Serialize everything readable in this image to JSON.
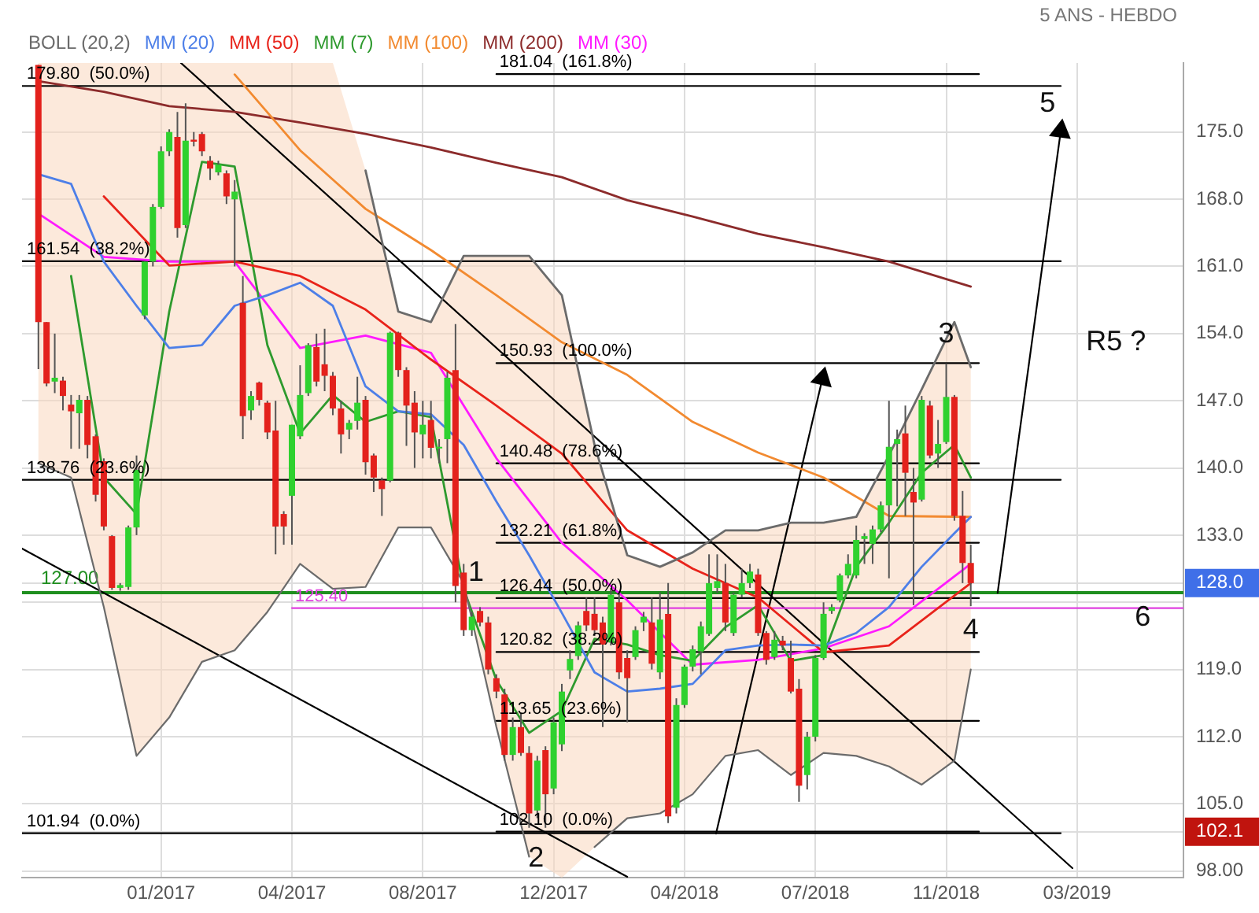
{
  "chart_data": {
    "type": "candlestick",
    "annotations": [
      "5 ANS - HEBDO",
      "1",
      {
        "text": "2",
        "x": "2017-11-19",
        "y": 99.3
      },
      {
        "text": "3",
        "x": "2018-11-05",
        "y": 153.9
      },
      {
        "text": "4",
        "x": "2018-11-26",
        "y": 123.1
      },
      "5",
      "6",
      "R5 ?"
    ],
    "x": [
      "2016-09-19",
      "2016-09-26",
      "2016-10-03",
      "2016-10-10",
      "2016-10-17",
      "2016-10-24",
      "2016-10-31",
      "2016-11-07",
      "2016-11-14",
      "2016-11-21",
      "2016-11-28",
      "2016-12-05",
      "2016-12-12",
      "2016-12-19",
      "2016-12-26",
      "2017-01-02",
      "2017-01-09",
      "2017-01-16",
      "2017-01-23",
      "2017-01-30",
      "2017-02-06",
      "2017-02-13",
      "2017-02-20",
      "2017-02-27",
      "2017-03-06",
      "2017-03-13",
      "2017-03-20",
      "2017-03-27",
      "2017-04-03",
      "2017-04-10",
      "2017-04-17",
      "2017-04-24",
      "2017-05-01",
      "2017-05-08",
      "2017-05-15",
      "2017-05-22",
      "2017-05-29",
      "2017-06-05",
      "2017-06-12",
      "2017-06-19",
      "2017-06-26",
      "2017-07-03",
      "2017-07-10",
      "2017-07-17",
      "2017-07-24",
      "2017-07-31",
      "2017-08-07",
      "2017-08-14",
      "2017-08-21",
      "2017-08-28",
      "2017-09-04",
      "2017-09-11",
      "2017-09-18",
      "2017-09-25",
      "2017-10-02",
      "2017-10-09",
      "2017-10-16",
      "2017-10-23",
      "2017-10-30",
      "2017-11-06",
      "2017-11-13",
      "2017-11-20",
      "2017-11-27",
      "2017-12-04",
      "2017-12-11",
      "2017-12-18",
      "2017-12-25",
      "2018-01-01",
      "2018-01-08",
      "2018-01-15",
      "2018-01-22",
      "2018-01-29",
      "2018-02-05",
      "2018-02-12",
      "2018-02-19",
      "2018-02-26",
      "2018-03-05",
      "2018-03-12",
      "2018-03-19",
      "2018-03-26",
      "2018-04-02",
      "2018-04-09",
      "2018-04-16",
      "2018-04-23",
      "2018-04-30",
      "2018-05-07",
      "2018-05-14",
      "2018-05-21",
      "2018-05-28",
      "2018-06-04",
      "2018-06-11",
      "2018-06-18",
      "2018-06-25",
      "2018-07-02",
      "2018-07-09",
      "2018-07-16",
      "2018-07-23",
      "2018-07-30",
      "2018-08-06",
      "2018-08-13",
      "2018-08-20",
      "2018-08-27",
      "2018-09-03",
      "2018-09-10",
      "2018-09-17",
      "2018-09-24",
      "2018-10-01",
      "2018-10-08",
      "2018-10-15",
      "2018-10-22",
      "2018-10-29",
      "2018-11-05",
      "2018-11-12",
      "2018-11-19",
      "2018-11-26"
    ],
    "ohlc": [
      [
        182,
        182,
        150.3,
        155.2
      ],
      [
        155.2,
        155.2,
        148.5,
        148.8
      ],
      [
        149,
        154,
        147.8,
        149.4
      ],
      [
        149.1,
        149.5,
        146,
        147.5
      ],
      [
        146.6,
        147.6,
        142,
        145.9
      ],
      [
        145.7,
        147.6,
        142,
        147.1
      ],
      [
        147.1,
        147.5,
        141,
        142.4
      ],
      [
        143.3,
        143.5,
        136.5,
        137.2
      ],
      [
        140.7,
        141,
        133.5,
        133.9
      ],
      [
        132.9,
        133,
        127.3,
        127.5
      ],
      [
        127.5,
        128,
        127.2,
        127.8
      ],
      [
        127.6,
        134,
        127.3,
        133.8
      ],
      [
        133.8,
        141.3,
        133,
        139.8
      ],
      [
        155.9,
        161.5,
        155.5,
        161.5
      ],
      [
        161.5,
        167.5,
        161,
        167.2
      ],
      [
        167.2,
        173.5,
        167,
        173
      ],
      [
        173,
        175.3,
        172.5,
        175
      ],
      [
        174.5,
        177.1,
        164,
        165
      ],
      [
        165.3,
        178,
        165,
        174.1
      ],
      [
        174.2,
        175,
        173.5,
        174
      ],
      [
        174.8,
        175,
        172.5,
        173
      ],
      [
        172,
        172.5,
        170,
        171.2
      ],
      [
        170.8,
        172,
        170.5,
        171.6
      ],
      [
        170.7,
        171,
        167.5,
        168.3
      ],
      [
        168,
        170,
        161,
        168.8
      ],
      [
        157.2,
        160,
        143,
        145.4
      ],
      [
        146,
        148,
        145,
        147.5
      ],
      [
        148.9,
        149,
        146.5,
        147.1
      ],
      [
        146.8,
        147,
        143,
        143.7
      ],
      [
        143.9,
        147,
        131,
        133.9
      ],
      [
        135.2,
        135.5,
        132,
        133.9
      ],
      [
        137.1,
        144.5,
        132,
        144.5
      ],
      [
        143.3,
        150.7,
        143,
        147.6
      ],
      [
        147.8,
        153,
        147.5,
        152.8
      ],
      [
        152.6,
        154,
        148.5,
        149
      ],
      [
        150.8,
        154.5,
        148,
        149.6
      ],
      [
        149.6,
        150,
        145.5,
        146.2
      ],
      [
        146.2,
        147,
        141.5,
        143.5
      ],
      [
        144,
        145,
        143,
        144.7
      ],
      [
        144.9,
        149.5,
        144,
        146.8
      ],
      [
        147.1,
        147.5,
        139.3,
        140.6
      ],
      [
        141.3,
        141.5,
        137.5,
        139
      ],
      [
        138.7,
        139,
        135,
        137.8
      ],
      [
        138.7,
        154.2,
        138.5,
        154.1
      ],
      [
        154.1,
        154.2,
        149.5,
        150.2
      ],
      [
        150.2,
        150.5,
        142.3,
        146.5
      ],
      [
        146.8,
        148,
        140,
        143.7
      ],
      [
        143.5,
        147,
        141,
        144.5
      ],
      [
        145,
        147,
        141,
        142.1
      ],
      [
        142.1,
        143,
        140.5,
        142.2
      ],
      [
        143,
        150,
        140.5,
        149.4
      ],
      [
        150.2,
        155,
        126,
        127.7
      ],
      [
        129.1,
        130,
        122.5,
        123.1
      ],
      [
        123.1,
        125,
        122.5,
        124.5
      ],
      [
        125.1,
        125.5,
        123.5,
        123.9
      ],
      [
        123.9,
        124.5,
        118.5,
        119
      ],
      [
        118.1,
        118.5,
        116,
        116.7
      ],
      [
        116.4,
        117,
        109.5,
        110.1
      ],
      [
        110.1,
        114,
        109.5,
        113
      ],
      [
        113,
        114.5,
        110,
        110.3
      ],
      [
        110.3,
        111,
        102.5,
        104
      ],
      [
        104.3,
        110,
        103.5,
        109.5
      ],
      [
        110.6,
        111,
        102.5,
        106
      ],
      [
        106.6,
        114,
        106,
        113.5
      ],
      [
        111.2,
        117.5,
        110.5,
        116.7
      ],
      [
        118.9,
        121,
        118,
        120.1
      ],
      [
        120.4,
        124,
        120,
        123.6
      ],
      [
        125.1,
        126.5,
        123,
        123.6
      ],
      [
        124.8,
        126.5,
        122.5,
        123.1
      ],
      [
        123.9,
        124.5,
        113,
        121.6
      ],
      [
        121.9,
        127.5,
        121.5,
        126.8
      ],
      [
        126,
        127,
        118,
        118.7
      ],
      [
        120.2,
        121,
        113.5,
        118.1
      ],
      [
        120.3,
        123.5,
        120,
        123.1
      ],
      [
        123.9,
        125,
        123,
        124.5
      ],
      [
        123.9,
        126.5,
        119,
        119.6
      ],
      [
        118.7,
        127,
        118,
        124.2
      ],
      [
        124.8,
        128,
        103,
        103.7
      ],
      [
        104.6,
        116,
        104,
        115.3
      ],
      [
        115.3,
        119.5,
        115,
        119.3
      ],
      [
        119.3,
        121.5,
        118.8,
        121.1
      ],
      [
        120.9,
        124,
        118.5,
        123.5
      ],
      [
        122.7,
        131,
        122.5,
        128
      ],
      [
        127.5,
        131,
        127,
        128.2
      ],
      [
        128,
        130,
        123,
        123.9
      ],
      [
        122.8,
        127,
        122.5,
        126.8
      ],
      [
        126.8,
        129.5,
        126.5,
        128
      ],
      [
        128,
        130,
        127.5,
        129.2
      ],
      [
        128.9,
        129.5,
        122.5,
        122.8
      ],
      [
        122.8,
        123,
        119.5,
        120
      ],
      [
        120.3,
        123,
        120,
        122.1
      ],
      [
        122,
        122.5,
        121,
        121.5
      ],
      [
        120.2,
        122,
        116.5,
        116.7
      ],
      [
        117,
        118,
        105.2,
        106.9
      ],
      [
        108,
        112.5,
        106.5,
        112
      ],
      [
        112,
        120.5,
        111.5,
        120.2
      ],
      [
        120.2,
        126,
        120,
        124.8
      ],
      [
        125.1,
        125.8,
        124.8,
        125.5
      ],
      [
        126.2,
        129,
        126,
        128.8
      ],
      [
        128.8,
        131,
        128.5,
        130
      ],
      [
        128.8,
        134,
        128.5,
        132.5
      ],
      [
        132.6,
        133.2,
        130,
        132.9
      ],
      [
        132.1,
        134,
        130,
        133.6
      ],
      [
        133.6,
        136.5,
        133.3,
        136.1
      ],
      [
        136.1,
        147,
        128.5,
        142.2
      ],
      [
        142.5,
        144,
        136,
        143
      ],
      [
        143.6,
        146.5,
        135,
        139.5
      ],
      [
        137.5,
        140,
        125.7,
        136.4
      ],
      [
        136.7,
        147.5,
        136.5,
        147.1
      ],
      [
        146.5,
        147,
        141,
        141.3
      ],
      [
        141.5,
        145,
        140,
        142.5
      ],
      [
        142.7,
        150.9,
        142.5,
        147.4
      ],
      [
        147.4,
        147.6,
        134.5,
        135
      ],
      [
        135,
        137.6,
        128,
        130.1
      ],
      [
        130.1,
        132,
        125.6,
        128
      ]
    ],
    "series": [
      {
        "type": "line",
        "name": "BOLL (20,2)",
        "color": "#6b6b6b",
        "x": [
          "2017-06-26",
          "2017-07-24",
          "2017-08-21",
          "2017-09-18",
          "2017-10-16",
          "2017-11-13",
          "2017-12-11",
          "2018-01-08",
          "2018-02-05",
          "2018-03-05",
          "2018-04-02",
          "2018-04-30",
          "2018-05-28",
          "2018-06-25",
          "2018-07-23",
          "2018-08-20",
          "2018-09-17",
          "2018-10-15",
          "2018-11-12",
          "2018-11-26"
        ],
        "values": [
          171,
          156.3,
          155.2,
          162.1,
          162.1,
          162.1,
          158,
          142.4,
          130.9,
          129.7,
          131.2,
          133.5,
          133.5,
          134.3,
          134.3,
          134.9,
          141.3,
          148.2,
          155.2,
          150.5
        ]
      },
      {
        "type": "line",
        "color": "#6b6b6b",
        "x": [
          "2016-09-19",
          "2016-10-17",
          "2016-11-14",
          "2016-12-12",
          "2017-01-09",
          "2017-02-06",
          "2017-03-06",
          "2017-04-03",
          "2017-05-01",
          "2017-05-29",
          "2017-06-26",
          "2017-07-24",
          "2017-08-21",
          "2017-09-18",
          "2017-10-16",
          "2017-11-13",
          "2017-12-11",
          "2018-01-08",
          "2018-02-05",
          "2018-03-05",
          "2018-04-02",
          "2018-04-30",
          "2018-05-28",
          "2018-06-25",
          "2018-07-23",
          "2018-08-20",
          "2018-09-17",
          "2018-10-15",
          "2018-11-12",
          "2018-11-26"
        ],
        "values": [
          140.5,
          139,
          125.5,
          110,
          114,
          119.8,
          121,
          125,
          130,
          127.4,
          127.6,
          133.8,
          133.8,
          128,
          113,
          99.5,
          null,
          100.5,
          103.5,
          104,
          106,
          110,
          110.6,
          108,
          110.3,
          110,
          108.9,
          107,
          109.5,
          119
        ]
      },
      {
        "type": "line",
        "name": "MM (20)",
        "color": "#4d7fe8",
        "x": [
          "2016-09-19",
          "2016-10-17",
          "2016-11-14",
          "2016-12-12",
          "2017-01-09",
          "2017-02-06",
          "2017-03-06",
          "2017-04-03",
          "2017-05-01",
          "2017-05-29",
          "2017-06-26",
          "2017-07-24",
          "2017-08-21",
          "2017-09-18",
          "2017-10-16",
          "2017-11-13",
          "2017-12-11",
          "2018-01-08",
          "2018-02-05",
          "2018-03-05",
          "2018-04-02",
          "2018-04-30",
          "2018-05-28",
          "2018-06-25",
          "2018-07-23",
          "2018-08-20",
          "2018-09-17",
          "2018-10-15",
          "2018-11-12",
          "2018-11-26"
        ],
        "values": [
          170.6,
          169.6,
          161.5,
          156.9,
          152.5,
          152.8,
          156.9,
          158,
          159.3,
          156.9,
          148.5,
          145.9,
          145.6,
          142.4,
          136.5,
          130.9,
          124.9,
          118.7,
          116.7,
          117,
          117.5,
          121,
          121.5,
          121.6,
          121.5,
          122.8,
          125.5,
          129.7,
          133.2,
          134.9
        ],
        "lower": [
          140.5,
          139,
          125.5,
          110,
          114,
          119.8,
          121,
          125,
          130,
          127.4,
          127.6,
          133.8,
          133.8,
          128,
          113,
          99.5,
          97.3,
          100.5,
          103.5,
          104,
          106,
          110,
          110.6,
          108,
          110.3,
          110,
          108.9,
          107,
          109.5,
          119
        ],
        "upper": [
          182.2,
          182.2,
          182.2,
          182.2,
          182.2,
          182.2,
          182.2,
          182.2,
          182.2,
          182.2,
          171,
          156.3,
          155.2,
          162.1,
          162.1,
          162.1,
          158,
          142.4,
          130.9,
          129.7,
          131.2,
          133.5,
          133.5,
          134.3,
          134.3,
          134.9,
          141.3,
          148.2,
          155.2,
          150.5
        ]
      },
      {
        "type": "line",
        "name": "MM (50)",
        "color": "#e8231a",
        "x": [
          "2016-11-14",
          "2017-01-09",
          "2017-03-06",
          "2017-05-01",
          "2017-06-26",
          "2017-08-21",
          "2017-10-16",
          "2017-12-11",
          "2018-02-05",
          "2018-04-02",
          "2018-05-28",
          "2018-07-23",
          "2018-09-17",
          "2018-11-26"
        ],
        "values": [
          168.3,
          161.1,
          161.5,
          160,
          156.5,
          151.3,
          146.5,
          141.5,
          133.5,
          129.5,
          126.5,
          120.8,
          121.5,
          128
        ]
      },
      {
        "type": "line",
        "name": "MM (7)",
        "color": "#2e9a2e",
        "x": [
          "2016-10-17",
          "2016-11-14",
          "2016-12-12",
          "2017-01-09",
          "2017-02-06",
          "2017-03-06",
          "2017-04-03",
          "2017-05-01",
          "2017-05-29",
          "2017-06-26",
          "2017-07-24",
          "2017-08-21",
          "2017-09-18",
          "2017-10-16",
          "2017-11-13",
          "2017-12-11",
          "2018-01-08",
          "2018-02-05",
          "2018-03-05",
          "2018-04-02",
          "2018-04-30",
          "2018-05-28",
          "2018-06-25",
          "2018-07-23",
          "2018-08-20",
          "2018-09-17",
          "2018-10-15",
          "2018-11-12",
          "2018-11-26"
        ],
        "values": [
          160,
          139,
          135.2,
          156.3,
          171.9,
          171.4,
          152.8,
          143.6,
          147.6,
          144.8,
          145.9,
          145.3,
          127.4,
          117.9,
          112.4,
          114.7,
          122.2,
          121.6,
          120.5,
          119.9,
          123.4,
          125.7,
          119.9,
          120.5,
          129.7,
          134.3,
          139.5,
          142.4,
          139
        ]
      },
      {
        "type": "line",
        "name": "MM (100)",
        "color": "#f28a30",
        "x": [
          "2017-03-06",
          "2017-05-01",
          "2017-06-26",
          "2017-08-21",
          "2017-10-16",
          "2017-12-11",
          "2018-02-05",
          "2018-04-02",
          "2018-05-28",
          "2018-07-23",
          "2018-09-17",
          "2018-11-26"
        ],
        "values": [
          181,
          173.1,
          167,
          162.7,
          158,
          153.1,
          149.7,
          144.8,
          141.6,
          139,
          135,
          134.9
        ]
      },
      {
        "type": "line",
        "name": "MM (200)",
        "color": "#8c2b2b",
        "x": [
          "2016-09-19",
          "2016-11-14",
          "2017-01-09",
          "2017-03-06",
          "2017-05-01",
          "2017-06-26",
          "2017-08-21",
          "2017-10-16",
          "2017-12-11",
          "2018-02-05",
          "2018-04-02",
          "2018-05-28",
          "2018-07-23",
          "2018-09-17",
          "2018-11-26"
        ],
        "values": [
          180.3,
          179.2,
          177.7,
          177.1,
          176,
          174.8,
          173.4,
          171.8,
          170.3,
          167.9,
          166.2,
          164.4,
          163,
          161.5,
          158.9
        ]
      },
      {
        "type": "line",
        "name": "MM (30)",
        "color": "#ff1aff",
        "x": [
          "2016-09-19",
          "2016-11-14",
          "2017-01-09",
          "2017-03-06",
          "2017-05-01",
          "2017-06-26",
          "2017-08-21",
          "2017-10-16",
          "2017-12-11",
          "2018-02-05",
          "2018-04-02",
          "2018-05-28",
          "2018-07-23",
          "2018-09-17",
          "2018-11-26"
        ],
        "values": [
          166.5,
          162,
          161.5,
          161.5,
          152.5,
          153.8,
          152,
          141,
          132.2,
          126.2,
          119.5,
          120,
          121.2,
          123.5,
          130
        ]
      },
      {
        "type": "step",
        "name": "101.94  (0.0%)",
        "color": "#000000",
        "x": [
          "2016-09-05",
          "2019-02-11"
        ],
        "values": [
          101.94,
          101.94
        ]
      },
      {
        "type": "step",
        "name": "138.76  (23.6%)",
        "color": "#000000",
        "x": [
          "2016-09-05",
          "2019-02-11"
        ],
        "values": [
          138.76,
          138.76
        ]
      },
      {
        "type": "step",
        "name": "161.54  (38.2%)",
        "color": "#000000",
        "x": [
          "2016-09-05",
          "2019-02-11"
        ],
        "values": [
          161.54,
          161.54
        ]
      },
      {
        "type": "step",
        "name": "179.80  (50.0%)",
        "color": "#000000",
        "x": [
          "2016-09-05",
          "2019-02-11"
        ],
        "values": [
          179.8,
          179.8
        ]
      },
      {
        "type": "step",
        "name": "102.10  (0.0%)",
        "color": "#000000",
        "x": [
          "2017-10-16",
          "2018-12-03"
        ],
        "values": [
          102.1,
          102.1
        ]
      },
      {
        "type": "step",
        "name": "113.65  (23.6%)",
        "color": "#000000",
        "x": [
          "2017-10-16",
          "2018-12-03"
        ],
        "values": [
          113.65,
          113.65
        ]
      },
      {
        "type": "step",
        "name": "120.82  (38.2%)",
        "color": "#000000",
        "x": [
          "2017-10-16",
          "2018-12-03"
        ],
        "values": [
          120.82,
          120.82
        ]
      },
      {
        "type": "step",
        "name": "126.44  (50.0%)",
        "color": "#000000",
        "x": [
          "2017-10-16",
          "2018-12-03"
        ],
        "values": [
          126.44,
          126.44
        ]
      },
      {
        "type": "step",
        "name": "132.21  (61.8%)",
        "color": "#000000",
        "x": [
          "2017-10-16",
          "2018-12-03"
        ],
        "values": [
          132.21,
          132.21
        ]
      },
      {
        "type": "step",
        "name": "140.48  (78.6%)",
        "color": "#000000",
        "x": [
          "2017-10-16",
          "2018-12-03"
        ],
        "values": [
          140.48,
          140.48
        ]
      },
      {
        "type": "step",
        "name": "150.93  (100.0%)",
        "color": "#000000",
        "x": [
          "2017-10-16",
          "2018-12-03"
        ],
        "values": [
          150.93,
          150.93
        ]
      },
      {
        "type": "step",
        "name": "181.04  (161.8%)",
        "color": "#000000",
        "x": [
          "2017-10-16",
          "2018-12-03"
        ],
        "values": [
          181.04,
          181.04
        ]
      },
      {
        "type": "step",
        "name": "125.40",
        "color": "#e040e0",
        "x": [
          "2017-04-24",
          "2019-04-22",
          "2019-05-27"
        ],
        "values": [
          125.4,
          125.4,
          125.4
        ]
      },
      {
        "type": "line",
        "color": "#000000",
        "x": [
          "2017-01-19",
          "2019-02-21"
        ],
        "values": [
          182.2,
          98.3
        ]
      },
      {
        "type": "line",
        "color": "#000000",
        "x": [
          "2016-09-05",
          "2018-02-05"
        ],
        "values": [
          131.6,
          97.4
        ]
      },
      {
        "type": "line",
        "color": "#000000",
        "marker": "triangle",
        "x": [
          "2018-04-22",
          "2018-07-22"
        ],
        "values": [
          101.9,
          149.3
        ]
      },
      {
        "type": "line",
        "color": "#000000",
        "marker": "triangle",
        "x": [
          "2018-12-19",
          "2019-02-11"
        ],
        "values": [
          127,
          175.1
        ]
      }
    ],
    "ref_lines": [
      {
        "axis": "y",
        "value": 127,
        "label": "127.00",
        "color": "#1f8f1f"
      }
    ],
    "xlim": [
      "2016-09-05",
      "2019-05-27"
    ],
    "xticks": [
      {
        "value": "2017-01-02",
        "label": "01/2017"
      },
      {
        "value": "2017-04-24",
        "label": "04/2017"
      },
      {
        "value": "2017-08-14",
        "label": "08/2017"
      },
      {
        "value": "2017-12-04",
        "label": "12/2017"
      },
      {
        "value": "2018-03-26",
        "label": "04/2018"
      },
      {
        "value": "2018-07-16",
        "label": "07/2018"
      },
      {
        "value": "2018-11-05",
        "label": "11/2018"
      },
      {
        "value": "2019-02-25",
        "label": "03/2019"
      }
    ],
    "ylim": [
      97.3,
      182.2
    ],
    "yticks": [
      {
        "value": 98,
        "label": "98.00"
      },
      {
        "value": 102.1,
        "label": "102.1"
      },
      {
        "value": 105,
        "label": "105.0"
      },
      {
        "value": 112,
        "label": "112.0"
      },
      {
        "value": 119,
        "label": "119.0"
      },
      {
        "value": 126,
        "label": null
      },
      {
        "value": 128,
        "label": "128.0"
      },
      {
        "value": 133,
        "label": "133.0"
      },
      {
        "value": 140,
        "label": "140.0"
      },
      {
        "value": 147,
        "label": "147.0"
      },
      {
        "value": 154,
        "label": "154.0"
      },
      {
        "value": 161,
        "label": "161.0"
      },
      {
        "value": 168,
        "label": "168.0"
      },
      {
        "value": 175,
        "label": "175.0"
      }
    ],
    "grid": true,
    "legend": "top left"
  }
}
